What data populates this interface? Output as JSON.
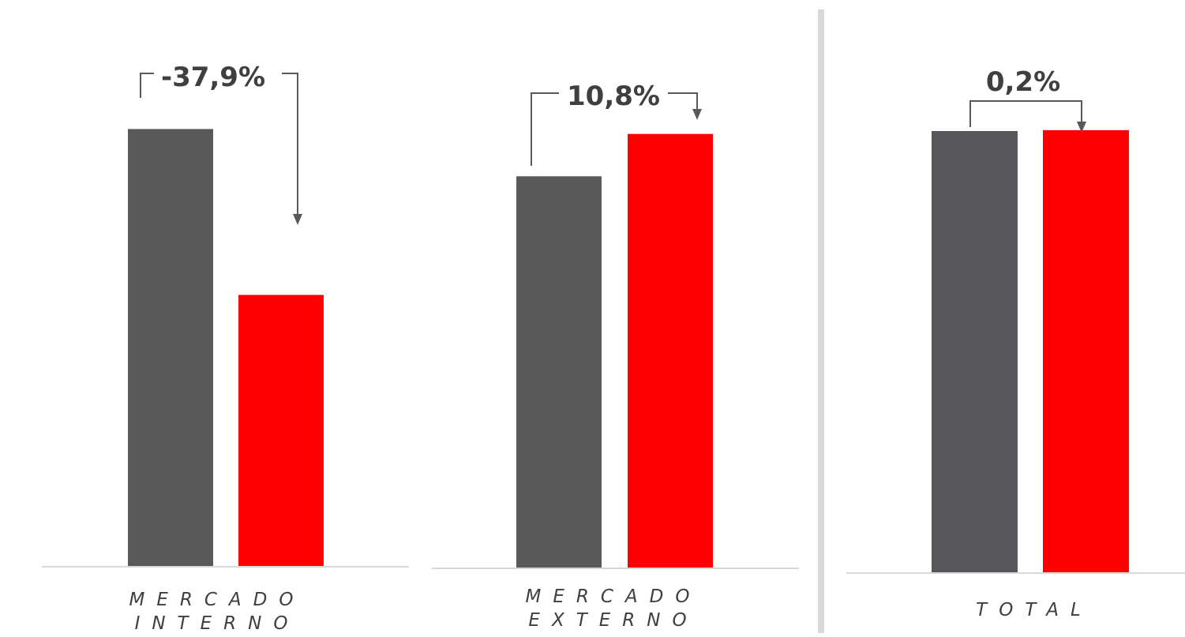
{
  "chart_data": [
    {
      "type": "bar",
      "categories": [
        "MERCADO INTERNO"
      ],
      "label_lines": [
        "MERCADO",
        "INTERNO"
      ],
      "series": [
        {
          "values": [
            100
          ],
          "color": "#595959"
        },
        {
          "values": [
            62.1
          ],
          "color": "#ff0000"
        }
      ],
      "annotation": "-37,9%",
      "ylim": [
        0,
        110
      ]
    },
    {
      "type": "bar",
      "categories": [
        "MERCADO EXTERNO"
      ],
      "label_lines": [
        "MERCADO",
        "EXTERNO"
      ],
      "series": [
        {
          "values": [
            100
          ],
          "color": "#595959"
        },
        {
          "values": [
            110.8
          ],
          "color": "#ff0000"
        }
      ],
      "annotation": "10,8%",
      "ylim": [
        0,
        120
      ]
    },
    {
      "type": "bar",
      "categories": [
        "TOTAL"
      ],
      "label_lines": [
        "TOTAL"
      ],
      "series": [
        {
          "values": [
            100
          ],
          "color": "#56565b"
        },
        {
          "values": [
            100.2
          ],
          "color": "#ff0000"
        }
      ],
      "annotation": "0,2%",
      "ylim": [
        0,
        110
      ]
    }
  ],
  "colors": {
    "axis": "#d9d9d9",
    "divider": "#d9d9d9",
    "arrow": "#595959",
    "text": "#3f3f3f"
  }
}
